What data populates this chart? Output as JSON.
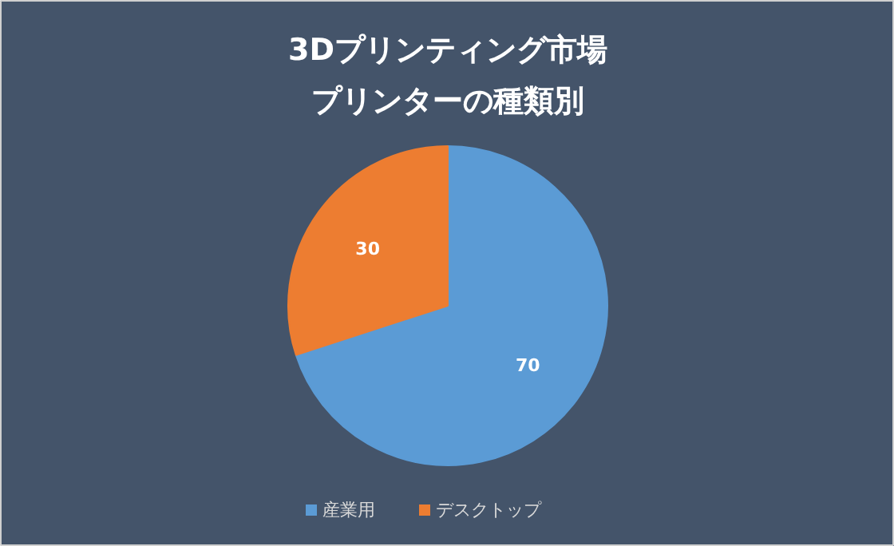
{
  "chart_data": {
    "type": "pie",
    "title": "3Dプリンティング市場",
    "subtitle": "プリンターの種類別",
    "categories": [
      "産業用",
      "デスクトップ"
    ],
    "values": [
      70,
      30
    ],
    "colors": [
      "#5b9bd5",
      "#ed7d31"
    ],
    "data_labels": true,
    "legend": "bottom"
  }
}
